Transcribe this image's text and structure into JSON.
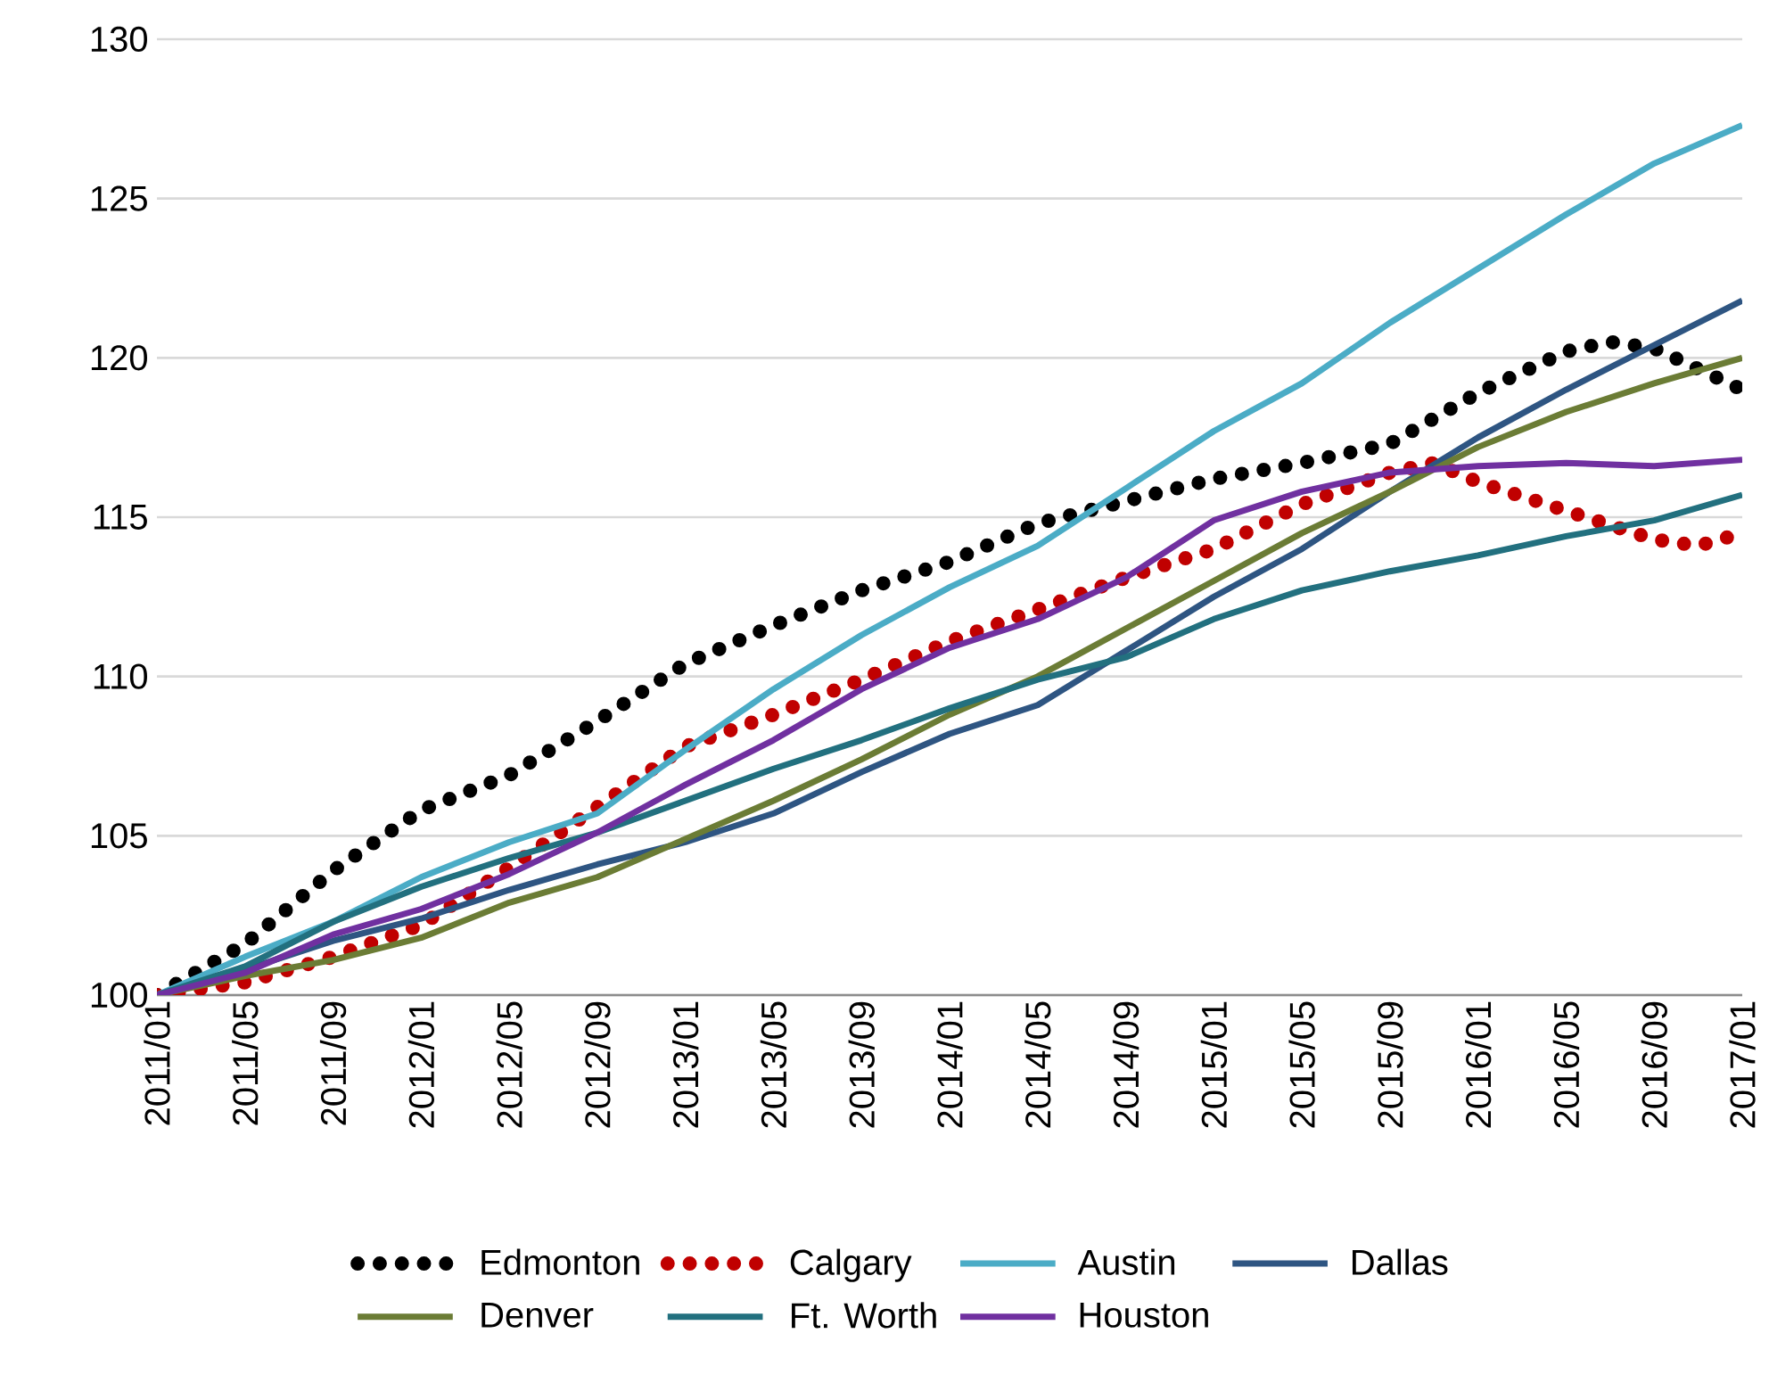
{
  "chart_data": {
    "type": "line",
    "x": [
      "2011-01",
      "2011-05",
      "2011-09",
      "2012-01",
      "2012-05",
      "2012-09",
      "2013-01",
      "2013-05",
      "2013-09",
      "2014-01",
      "2014-05",
      "2014-09",
      "2015-01",
      "2015-05",
      "2015-09",
      "2016-01",
      "2016-05",
      "2016-09",
      "2017-01"
    ],
    "series": [
      {
        "name": "Edmonton",
        "color": "#000000",
        "line_style": "dotted",
        "x": [
          "2011-01",
          "2011-05",
          "2011-09",
          "2012-01",
          "2012-05",
          "2012-09",
          "2013-01",
          "2013-05",
          "2013-09",
          "2014-01",
          "2014-05",
          "2014-09",
          "2015-01",
          "2015-05",
          "2015-09",
          "2016-01",
          "2016-05",
          "2016-07",
          "2016-09",
          "2017-01"
        ],
        "values": [
          100,
          101.6,
          103.9,
          105.8,
          106.9,
          108.6,
          110.4,
          111.6,
          112.7,
          113.6,
          114.8,
          115.5,
          116.2,
          116.7,
          117.3,
          118.9,
          120.2,
          120.5,
          120.3,
          119.0
        ]
      },
      {
        "name": "Calgary",
        "color": "#c00000",
        "line_style": "dotted",
        "x": [
          "2011-01",
          "2011-05",
          "2011-09",
          "2012-01",
          "2012-05",
          "2012-09",
          "2013-01",
          "2013-05",
          "2013-09",
          "2014-01",
          "2014-05",
          "2014-09",
          "2015-01",
          "2015-05",
          "2015-09",
          "2015-11",
          "2016-01",
          "2016-05",
          "2016-09",
          "2016-11",
          "2017-01"
        ],
        "values": [
          100,
          100.4,
          101.2,
          102.2,
          104.0,
          105.9,
          107.8,
          108.8,
          109.9,
          111.1,
          112.1,
          113.1,
          114.0,
          115.4,
          116.4,
          116.7,
          116.1,
          115.2,
          114.3,
          114.1,
          114.5
        ]
      },
      {
        "name": "Austin",
        "color": "#4bacc6",
        "values": [
          100,
          101.2,
          102.3,
          103.7,
          104.8,
          105.7,
          107.7,
          109.6,
          111.3,
          112.8,
          114.1,
          115.9,
          117.7,
          119.2,
          121.1,
          122.8,
          124.5,
          126.1,
          127.3
        ]
      },
      {
        "name": "Dallas",
        "color": "#2e5582",
        "values": [
          100,
          100.8,
          101.7,
          102.4,
          103.3,
          104.1,
          104.8,
          105.7,
          107.0,
          108.2,
          109.1,
          110.8,
          112.5,
          114.0,
          115.8,
          117.5,
          119.0,
          120.4,
          121.8
        ]
      },
      {
        "name": "Denver",
        "color": "#6b7c35",
        "values": [
          100,
          100.6,
          101.1,
          101.8,
          102.9,
          103.7,
          104.9,
          106.1,
          107.4,
          108.8,
          110.0,
          111.5,
          113.0,
          114.5,
          115.8,
          117.2,
          118.3,
          119.2,
          120.0
        ]
      },
      {
        "name": "Ft. Worth",
        "color": "#22707f",
        "values": [
          100,
          100.9,
          102.3,
          103.4,
          104.3,
          105.1,
          106.1,
          107.1,
          108.0,
          109.0,
          109.9,
          110.6,
          111.8,
          112.7,
          113.3,
          113.8,
          114.4,
          114.9,
          115.7
        ]
      },
      {
        "name": "Houston",
        "color": "#7030a0",
        "values": [
          100,
          100.7,
          101.9,
          102.7,
          103.8,
          105.1,
          106.6,
          108.0,
          109.6,
          110.9,
          111.8,
          113.1,
          114.9,
          115.8,
          116.4,
          116.6,
          116.7,
          116.6,
          116.8
        ]
      }
    ],
    "xlim": [
      "2011-01",
      "2017-01"
    ],
    "xticks": [
      {
        "value": "2011-01",
        "label": "2011/01"
      },
      {
        "value": "2011-05",
        "label": "2011/05"
      },
      {
        "value": "2011-09",
        "label": "2011/09"
      },
      {
        "value": "2012-01",
        "label": "2012/01"
      },
      {
        "value": "2012-05",
        "label": "2012/05"
      },
      {
        "value": "2012-09",
        "label": "2012/09"
      },
      {
        "value": "2013-01",
        "label": "2013/01"
      },
      {
        "value": "2013-05",
        "label": "2013/05"
      },
      {
        "value": "2013-09",
        "label": "2013/09"
      },
      {
        "value": "2014-01",
        "label": "2014/01"
      },
      {
        "value": "2014-05",
        "label": "2014/05"
      },
      {
        "value": "2014-09",
        "label": "2014/09"
      },
      {
        "value": "2015-01",
        "label": "2015/01"
      },
      {
        "value": "2015-05",
        "label": "2015/05"
      },
      {
        "value": "2015-09",
        "label": "2015/09"
      },
      {
        "value": "2016-01",
        "label": "2016/01"
      },
      {
        "value": "2016-05",
        "label": "2016/05"
      },
      {
        "value": "2016-09",
        "label": "2016/09"
      },
      {
        "value": "2017-01",
        "label": "2017/01"
      }
    ],
    "ylim": [
      100,
      130
    ],
    "yticks": [
      100,
      105,
      110,
      115,
      120,
      125,
      130
    ],
    "grid": "y",
    "legend": "bottom"
  }
}
